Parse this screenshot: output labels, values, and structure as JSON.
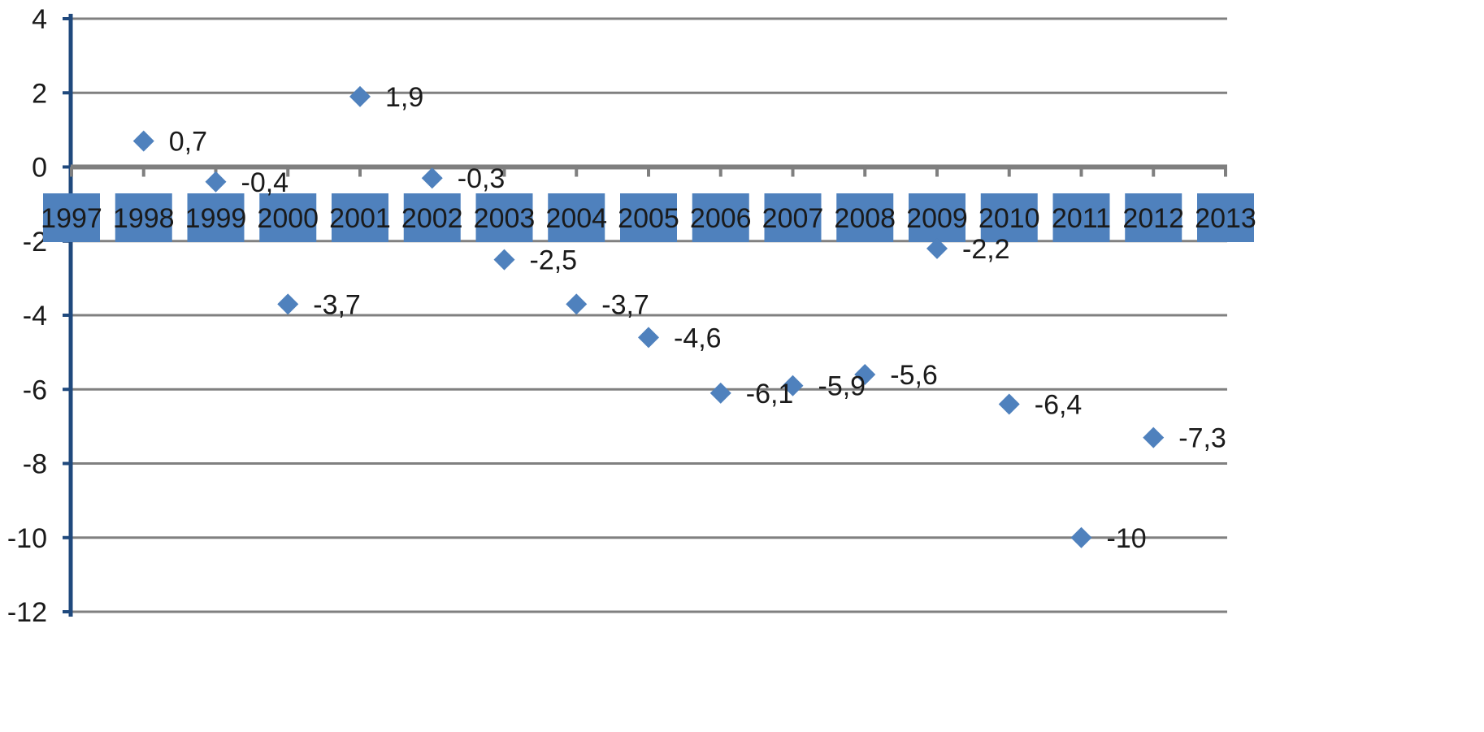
{
  "chart_data": {
    "type": "scatter",
    "title": "",
    "xlabel": "",
    "ylabel": "",
    "categories": [
      "1997",
      "1998",
      "1999",
      "2000",
      "2001",
      "2002",
      "2003",
      "2004",
      "2005",
      "2006",
      "2007",
      "2008",
      "2009",
      "2010",
      "2011",
      "2012",
      "2013"
    ],
    "series": [
      {
        "x": [
          "1998",
          "1999",
          "2000",
          "2001",
          "2002",
          "2003",
          "2004",
          "2005",
          "2006",
          "2007",
          "2008",
          "2009",
          "2010",
          "2011",
          "2012"
        ],
        "values": [
          0.7,
          -0.4,
          -3.7,
          1.9,
          -0.3,
          -2.5,
          -3.7,
          -4.6,
          -6.1,
          -5.9,
          -5.6,
          -2.2,
          -6.4,
          -10,
          -7.3
        ],
        "labels": [
          "0,7",
          "-0,4",
          "-3,7",
          "1,9",
          "-0,3",
          "-2,5",
          "-3,7",
          "-4,6",
          "-6,1",
          "-5,9",
          "-5,6",
          "-2,2",
          "-6,4",
          "-10",
          "-7,3"
        ]
      }
    ],
    "ylim": [
      -12,
      4
    ],
    "yticks": [
      4,
      2,
      0,
      -2,
      -4,
      -6,
      -8,
      -10,
      -12
    ],
    "grid": true,
    "legend": "none",
    "colors": {
      "marker": "#4f81bd",
      "category_box": "#4f81bd",
      "axis": "#1f497d",
      "grid": "#808080"
    }
  }
}
